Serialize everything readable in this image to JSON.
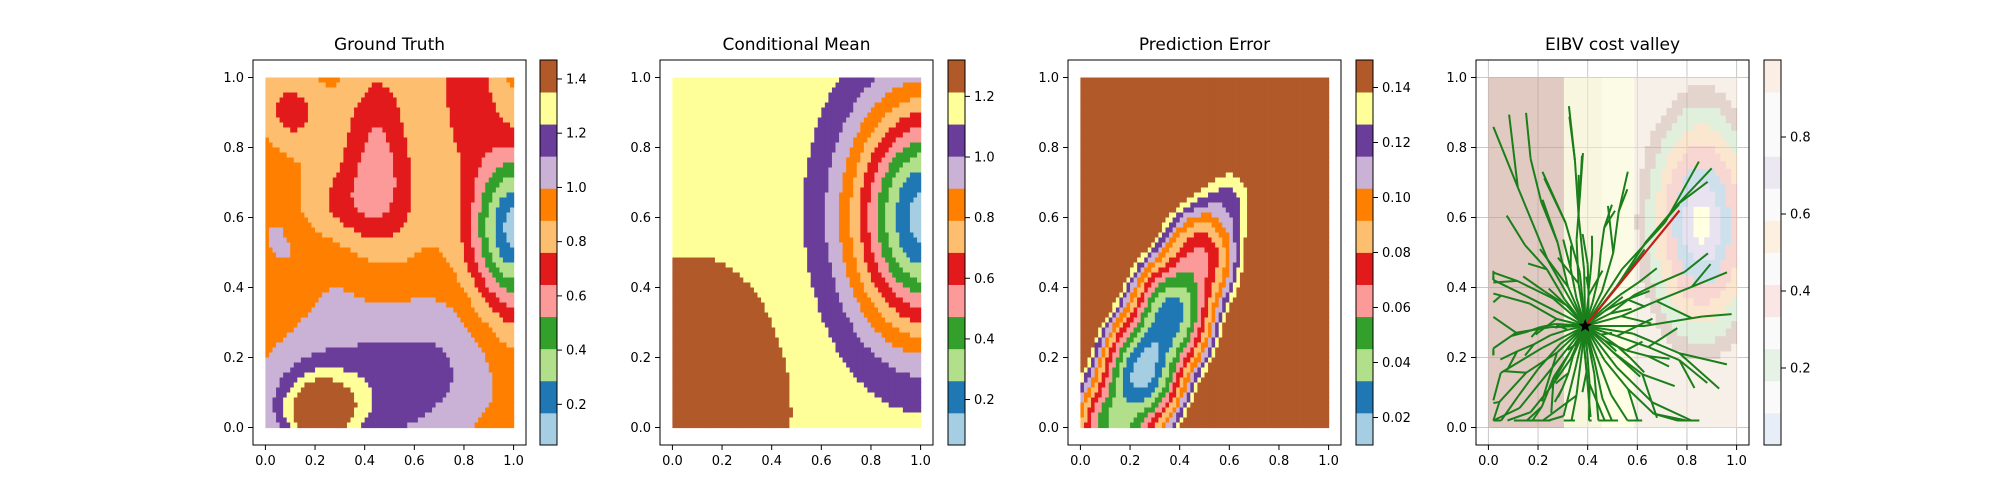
{
  "figure": {
    "panels": [
      {
        "title": "Ground Truth"
      },
      {
        "title": "Conditional Mean"
      },
      {
        "title": "Prediction Error"
      },
      {
        "title": "EIBV cost valley"
      }
    ]
  },
  "chart_data": [
    {
      "type": "heatmap",
      "title": "Ground Truth",
      "xlim": [
        -0.05,
        1.05
      ],
      "ylim": [
        -0.05,
        1.05
      ],
      "xticks": [
        "0.0",
        "0.2",
        "0.4",
        "0.6",
        "0.8",
        "1.0"
      ],
      "yticks": [
        "0.0",
        "0.2",
        "0.4",
        "0.6",
        "0.8",
        "1.0"
      ],
      "colorbar": {
        "range": [
          0.05,
          1.47
        ],
        "ticks": [
          "0.2",
          "0.4",
          "0.6",
          "0.8",
          "1.0",
          "1.2",
          "1.4"
        ],
        "colors": [
          "#a6cee3",
          "#1f78b4",
          "#b2df8a",
          "#33a02c",
          "#fb9a99",
          "#e31a1c",
          "#fdbf6f",
          "#ff7f00",
          "#cab2d6",
          "#6a3d9a",
          "#ffff99",
          "#b15928"
        ]
      }
    },
    {
      "type": "heatmap",
      "title": "Conditional Mean",
      "xlim": [
        -0.05,
        1.05
      ],
      "ylim": [
        -0.05,
        1.05
      ],
      "xticks": [
        "0.0",
        "0.2",
        "0.4",
        "0.6",
        "0.8",
        "1.0"
      ],
      "yticks": [
        "0.0",
        "0.2",
        "0.4",
        "0.6",
        "0.8",
        "1.0"
      ],
      "colorbar": {
        "range": [
          0.05,
          1.32
        ],
        "ticks": [
          "0.2",
          "0.4",
          "0.6",
          "0.8",
          "1.0",
          "1.2"
        ],
        "colors": [
          "#a6cee3",
          "#1f78b4",
          "#b2df8a",
          "#33a02c",
          "#fb9a99",
          "#e31a1c",
          "#fdbf6f",
          "#ff7f00",
          "#cab2d6",
          "#6a3d9a",
          "#ffff99",
          "#b15928"
        ]
      }
    },
    {
      "type": "heatmap",
      "title": "Prediction Error",
      "xlim": [
        -0.05,
        1.05
      ],
      "ylim": [
        -0.05,
        1.05
      ],
      "xticks": [
        "0.0",
        "0.2",
        "0.4",
        "0.6",
        "0.8",
        "1.0"
      ],
      "yticks": [
        "0.0",
        "0.2",
        "0.4",
        "0.6",
        "0.8",
        "1.0"
      ],
      "colorbar": {
        "range": [
          0.01,
          0.15
        ],
        "ticks": [
          "0.02",
          "0.04",
          "0.06",
          "0.08",
          "0.10",
          "0.12",
          "0.14"
        ],
        "colors": [
          "#a6cee3",
          "#1f78b4",
          "#b2df8a",
          "#33a02c",
          "#fb9a99",
          "#e31a1c",
          "#fdbf6f",
          "#ff7f00",
          "#cab2d6",
          "#6a3d9a",
          "#ffff99",
          "#b15928"
        ]
      }
    },
    {
      "type": "heatmap",
      "title": "EIBV cost valley",
      "xlim": [
        -0.05,
        1.05
      ],
      "ylim": [
        -0.05,
        1.05
      ],
      "xticks": [
        "0.0",
        "0.2",
        "0.4",
        "0.6",
        "0.8",
        "1.0"
      ],
      "yticks": [
        "0.0",
        "0.2",
        "0.4",
        "0.6",
        "0.8",
        "1.0"
      ],
      "grid": true,
      "current_location": {
        "x": 0.39,
        "y": 0.29,
        "marker": "star"
      },
      "next_waypoint": {
        "x": 0.77,
        "y": 0.62
      },
      "colorbar": {
        "range": [
          0.0,
          1.0
        ],
        "ticks": [
          "0.2",
          "0.4",
          "0.6",
          "0.8"
        ],
        "colors": [
          "#e8eef7",
          "#fafafa",
          "#e6f2e6",
          "#fafafa",
          "#fbe6e6",
          "#fafafa",
          "#fdf0e0",
          "#fafafa",
          "#ece8f2",
          "#fafafa",
          "#fafafa",
          "#fbeee4"
        ]
      }
    }
  ]
}
